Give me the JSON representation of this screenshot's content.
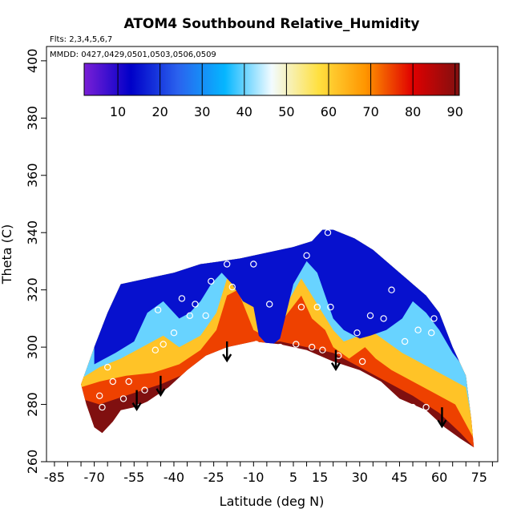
{
  "chart_data": {
    "type": "heatmap",
    "title": "ATOM4 Southbound Relative_Humidity",
    "notes": [
      "Flts: 2,3,4,5,6,7",
      "MMDD: 0427,0429,0501,0503,0506,0509"
    ],
    "xlabel": "Latitude (deg N)",
    "ylabel": "Theta (C)",
    "xlim": [
      -88,
      82
    ],
    "ylim": [
      260,
      405
    ],
    "x_ticks": [
      -85,
      -70,
      -55,
      -40,
      -25,
      -10,
      5,
      15,
      30,
      45,
      60,
      75
    ],
    "y_ticks": [
      260,
      280,
      300,
      320,
      340,
      360,
      380,
      400
    ],
    "colorbar": {
      "range": [
        2,
        91
      ],
      "ticks": [
        10,
        20,
        30,
        40,
        50,
        60,
        70,
        80,
        90
      ],
      "colors": [
        "#7a1fd6",
        "#0000c8",
        "#2a62ee",
        "#05b6ff",
        "#f2fbff",
        "#ffe040",
        "#ff9500",
        "#e00000",
        "#801010"
      ]
    },
    "envelope": {
      "upper": [
        [
          -75,
          287
        ],
        [
          -70,
          300
        ],
        [
          -65,
          312
        ],
        [
          -60,
          322
        ],
        [
          -50,
          324
        ],
        [
          -40,
          326
        ],
        [
          -30,
          329
        ],
        [
          -22,
          330
        ],
        [
          -15,
          331
        ],
        [
          -5,
          333
        ],
        [
          5,
          335
        ],
        [
          12,
          337
        ],
        [
          16,
          341
        ],
        [
          20,
          341
        ],
        [
          28,
          338
        ],
        [
          35,
          334
        ],
        [
          45,
          326
        ],
        [
          50,
          322
        ],
        [
          55,
          318
        ],
        [
          60,
          312
        ],
        [
          65,
          300
        ],
        [
          70,
          290
        ],
        [
          72,
          275
        ],
        [
          73,
          265
        ]
      ],
      "lower": [
        [
          73,
          265
        ],
        [
          68,
          268
        ],
        [
          62,
          272
        ],
        [
          55,
          278
        ],
        [
          45,
          282
        ],
        [
          38,
          288
        ],
        [
          30,
          292
        ],
        [
          20,
          295
        ],
        [
          10,
          299
        ],
        [
          0,
          301
        ],
        [
          -10,
          302
        ],
        [
          -20,
          300
        ],
        [
          -28,
          297
        ],
        [
          -35,
          292
        ],
        [
          -42,
          286
        ],
        [
          -50,
          281
        ],
        [
          -55,
          279
        ],
        [
          -60,
          278
        ],
        [
          -63,
          274
        ],
        [
          -67,
          270
        ],
        [
          -70,
          272
        ],
        [
          -73,
          280
        ],
        [
          -75,
          287
        ]
      ]
    },
    "humidity_bands": [
      {
        "value": 75,
        "upper": [
          [
            -75,
            282
          ],
          [
            -68,
            280
          ],
          [
            -55,
            284
          ],
          [
            -45,
            287
          ],
          [
            -35,
            291
          ],
          [
            -25,
            298
          ],
          [
            -18,
            300
          ],
          [
            -10,
            301
          ],
          [
            0,
            302
          ],
          [
            10,
            300
          ],
          [
            20,
            298
          ],
          [
            30,
            293
          ],
          [
            40,
            288
          ],
          [
            50,
            283
          ],
          [
            60,
            277
          ],
          [
            68,
            270
          ],
          [
            73,
            265
          ]
        ]
      },
      {
        "value": 62,
        "upper": [
          [
            -75,
            286
          ],
          [
            -68,
            288
          ],
          [
            -58,
            290
          ],
          [
            -48,
            291
          ],
          [
            -38,
            294
          ],
          [
            -30,
            299
          ],
          [
            -24,
            306
          ],
          [
            -20,
            318
          ],
          [
            -16,
            320
          ],
          [
            -10,
            306
          ],
          [
            -4,
            303
          ],
          [
            3,
            312
          ],
          [
            8,
            318
          ],
          [
            12,
            310
          ],
          [
            17,
            306
          ],
          [
            20,
            300
          ],
          [
            26,
            296
          ],
          [
            32,
            300
          ],
          [
            36,
            296
          ],
          [
            42,
            292
          ],
          [
            50,
            288
          ],
          [
            58,
            284
          ],
          [
            66,
            280
          ],
          [
            73,
            268
          ]
        ]
      },
      {
        "value": 40,
        "upper": [
          [
            -75,
            289
          ],
          [
            -68,
            293
          ],
          [
            -60,
            296
          ],
          [
            -52,
            300
          ],
          [
            -44,
            304
          ],
          [
            -38,
            300
          ],
          [
            -30,
            304
          ],
          [
            -24,
            312
          ],
          [
            -20,
            324
          ],
          [
            -14,
            324
          ],
          [
            -8,
            312
          ],
          [
            -2,
            306
          ],
          [
            3,
            316
          ],
          [
            8,
            324
          ],
          [
            12,
            318
          ],
          [
            16,
            312
          ],
          [
            20,
            306
          ],
          [
            24,
            302
          ],
          [
            30,
            304
          ],
          [
            34,
            306
          ],
          [
            40,
            302
          ],
          [
            46,
            298
          ],
          [
            54,
            294
          ],
          [
            62,
            290
          ],
          [
            70,
            286
          ],
          [
            73,
            270
          ]
        ]
      },
      {
        "value": 15,
        "upper": [
          [
            -70,
            294
          ],
          [
            -62,
            298
          ],
          [
            -55,
            302
          ],
          [
            -50,
            312
          ],
          [
            -44,
            316
          ],
          [
            -38,
            310
          ],
          [
            -34,
            312
          ],
          [
            -30,
            316
          ],
          [
            -26,
            322
          ],
          [
            -22,
            326
          ],
          [
            -18,
            322
          ],
          [
            -14,
            316
          ],
          [
            -10,
            314
          ],
          [
            -8,
            304
          ],
          [
            -4,
            300
          ],
          [
            0,
            303
          ],
          [
            5,
            322
          ],
          [
            10,
            330
          ],
          [
            14,
            326
          ],
          [
            20,
            310
          ],
          [
            24,
            306
          ],
          [
            30,
            303
          ],
          [
            34,
            304
          ],
          [
            40,
            306
          ],
          [
            46,
            310
          ],
          [
            50,
            316
          ],
          [
            55,
            312
          ],
          [
            60,
            306
          ],
          [
            65,
            298
          ],
          [
            70,
            292
          ]
        ]
      }
    ],
    "observation_points": [
      [
        -68,
        283
      ],
      [
        -67,
        279
      ],
      [
        -65,
        293
      ],
      [
        -63,
        288
      ],
      [
        -59,
        282
      ],
      [
        -57,
        288
      ],
      [
        -53,
        279
      ],
      [
        -51,
        285
      ],
      [
        -47,
        299
      ],
      [
        -46,
        313
      ],
      [
        -44,
        301
      ],
      [
        -40,
        305
      ],
      [
        -37,
        317
      ],
      [
        -34,
        311
      ],
      [
        -32,
        315
      ],
      [
        -30,
        289
      ],
      [
        -28,
        311
      ],
      [
        -26,
        323
      ],
      [
        -24,
        293
      ],
      [
        -22,
        297
      ],
      [
        -20,
        329
      ],
      [
        -18,
        321
      ],
      [
        -10,
        329
      ],
      [
        -9,
        301
      ],
      [
        -4,
        315
      ],
      [
        0,
        300
      ],
      [
        4,
        336
      ],
      [
        6,
        301
      ],
      [
        8,
        314
      ],
      [
        10,
        332
      ],
      [
        12,
        300
      ],
      [
        14,
        314
      ],
      [
        16,
        299
      ],
      [
        18,
        340
      ],
      [
        19,
        314
      ],
      [
        22,
        297
      ],
      [
        26,
        291
      ],
      [
        29,
        305
      ],
      [
        31,
        295
      ],
      [
        34,
        311
      ],
      [
        36,
        286
      ],
      [
        39,
        310
      ],
      [
        42,
        320
      ],
      [
        44,
        279
      ],
      [
        47,
        302
      ],
      [
        50,
        279
      ],
      [
        52,
        306
      ],
      [
        55,
        279
      ],
      [
        57,
        305
      ],
      [
        58,
        310
      ],
      [
        59,
        320
      ]
    ],
    "arrows": [
      [
        -54,
        285
      ],
      [
        -45,
        290
      ],
      [
        -20,
        302
      ],
      [
        21,
        299
      ],
      [
        61,
        279
      ]
    ]
  }
}
